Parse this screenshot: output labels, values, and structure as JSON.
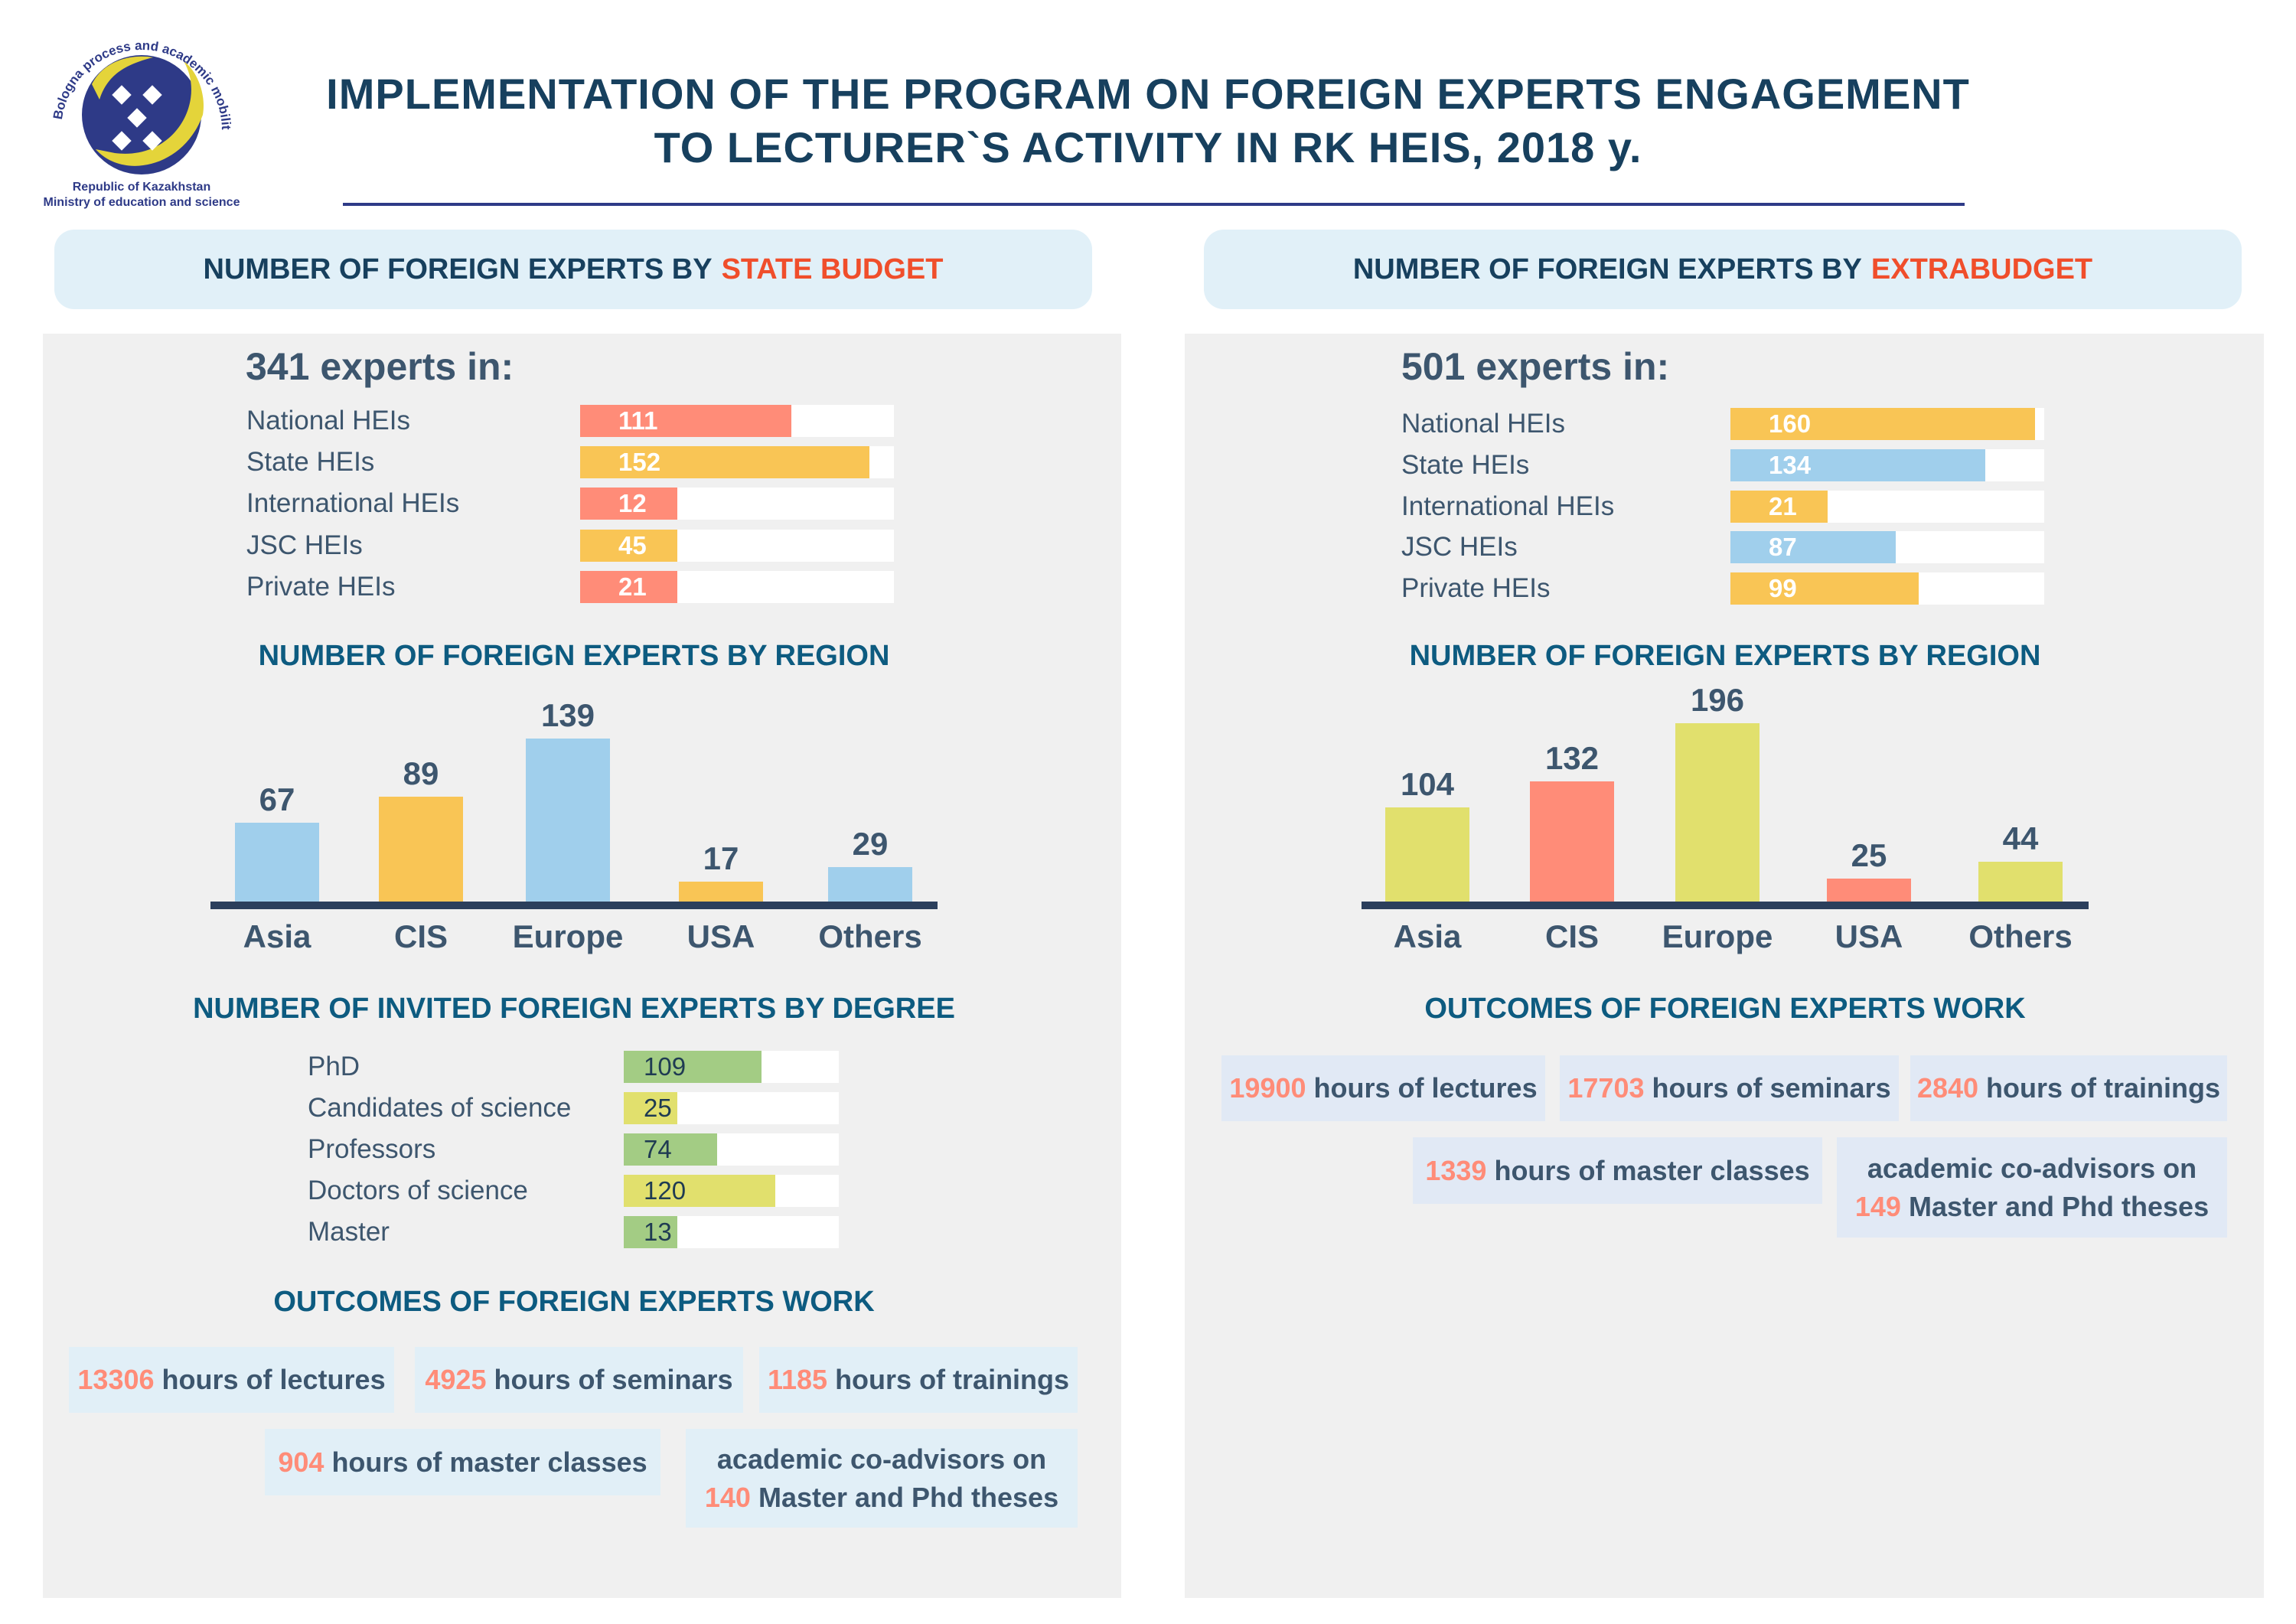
{
  "logo": {
    "ring_text": "Bologna process and academic mobility center",
    "line1": "Republic of Kazakhstan",
    "line2": "Ministry of education and science"
  },
  "header": {
    "title_line1": "IMPLEMENTATION OF THE PROGRAM ON FOREIGN EXPERTS ENGAGEMENT",
    "title_line2": "TO LECTURER`S ACTIVITY IN RK HEIS, 2018 y."
  },
  "colors": {
    "red": "#ff8c78",
    "yellow": "#f9c555",
    "blue": "#a0cfec",
    "green": "#a3cc84",
    "lime": "#e1e06d",
    "accent": "#f04e2b",
    "navy": "#17405e"
  },
  "state": {
    "heading_prefix": "NUMBER OF FOREIGN EXPERTS BY",
    "heading_accent": "STATE BUDGET",
    "total_label": "341 experts in:",
    "hei": [
      {
        "label": "National HEIs",
        "value": 111,
        "color": "red"
      },
      {
        "label": "State HEIs",
        "value": 152,
        "color": "yellow"
      },
      {
        "label": "International HEIs",
        "value": 12,
        "color": "red"
      },
      {
        "label": "JSC HEIs",
        "value": 45,
        "color": "yellow"
      },
      {
        "label": "Private HEIs",
        "value": 21,
        "color": "red"
      }
    ],
    "region_title": "NUMBER OF FOREIGN EXPERTS BY REGION",
    "degree_title": "NUMBER OF INVITED FOREIGN EXPERTS BY DEGREE",
    "degree": [
      {
        "label": "PhD",
        "value": 109,
        "color": "green"
      },
      {
        "label": "Candidates of science",
        "value": 25,
        "color": "lime"
      },
      {
        "label": "Professors",
        "value": 74,
        "color": "green"
      },
      {
        "label": "Doctors of science",
        "value": 120,
        "color": "lime"
      },
      {
        "label": "Master",
        "value": 13,
        "color": "green"
      }
    ],
    "outcomes_title": "OUTCOMES OF FOREIGN EXPERTS WORK",
    "outcomes": [
      {
        "num": "13306",
        "text": "hours of lectures"
      },
      {
        "num": "4925",
        "text": "hours of seminars"
      },
      {
        "num": "1185",
        "text": "hours of trainings"
      },
      {
        "num": "904",
        "text": "hours of master classes"
      },
      {
        "pre": "academic co-advisors on",
        "num": "140",
        "text": "Master and Phd theses"
      }
    ]
  },
  "extra": {
    "heading_prefix": "NUMBER OF FOREIGN EXPERTS BY",
    "heading_accent": "EXTRABUDGET",
    "total_label": "501 experts in:",
    "hei": [
      {
        "label": "National HEIs",
        "value": 160,
        "color": "yellow"
      },
      {
        "label": "State HEIs",
        "value": 134,
        "color": "blue"
      },
      {
        "label": "International HEIs",
        "value": 21,
        "color": "yellow"
      },
      {
        "label": "JSC HEIs",
        "value": 87,
        "color": "blue"
      },
      {
        "label": "Private HEIs",
        "value": 99,
        "color": "yellow"
      }
    ],
    "region_title": "NUMBER OF FOREIGN EXPERTS BY REGION",
    "outcomes_title": "OUTCOMES OF FOREIGN EXPERTS WORK",
    "outcomes": [
      {
        "num": "19900",
        "text": "hours of lectures"
      },
      {
        "num": "17703",
        "text": "hours of seminars"
      },
      {
        "num": "2840",
        "text": "hours of trainings"
      },
      {
        "num": "1339",
        "text": "hours of master classes"
      },
      {
        "pre": "academic co-advisors on",
        "num": "149",
        "text": "Master and Phd theses"
      }
    ]
  },
  "chart_data": [
    {
      "type": "bar",
      "title": "NUMBER OF FOREIGN EXPERTS BY REGION",
      "categories": [
        "Asia",
        "CIS",
        "Europe",
        "USA",
        "Others"
      ],
      "values": [
        67,
        89,
        139,
        17,
        29
      ],
      "colors": [
        "blue",
        "yellow",
        "blue",
        "yellow",
        "blue"
      ],
      "ylim": [
        0,
        170
      ],
      "grid": false
    },
    {
      "type": "bar",
      "title": "NUMBER OF FOREIGN EXPERTS BY REGION",
      "categories": [
        "Asia",
        "CIS",
        "Europe",
        "USA",
        "Others"
      ],
      "values": [
        104,
        132,
        196,
        25,
        44
      ],
      "colors": [
        "lime",
        "red",
        "lime",
        "red",
        "lime"
      ],
      "ylim": [
        0,
        220
      ],
      "grid": false
    }
  ]
}
